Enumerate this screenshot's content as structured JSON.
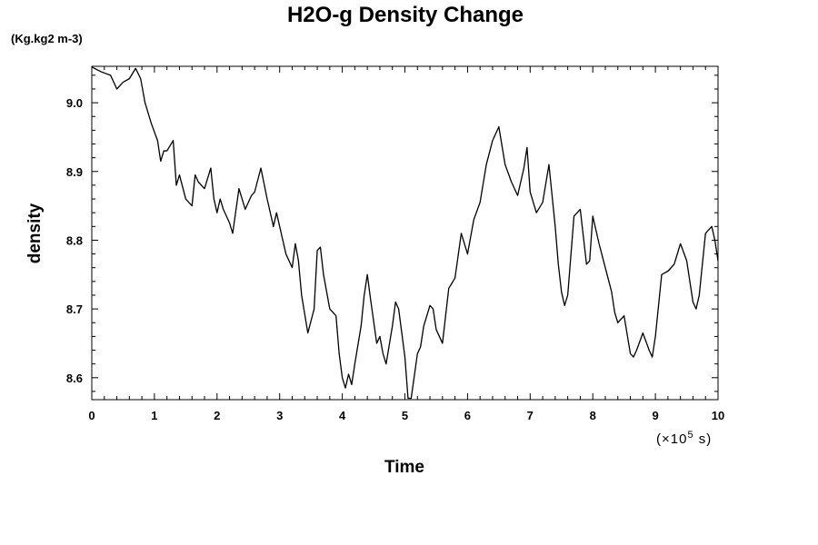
{
  "chart_data": {
    "type": "line",
    "title": "H2O-g Density Change",
    "unit_label": "(Kg.kg2 m-3)",
    "xlabel": "Time",
    "ylabel": "density",
    "x_scale_label": "(×10",
    "x_scale_exp": "5",
    "x_scale_unit": " s)",
    "xlim": [
      0,
      10
    ],
    "ylim": [
      8.568,
      9.053
    ],
    "x_ticks": [
      0,
      1,
      2,
      3,
      4,
      5,
      6,
      7,
      8,
      9,
      10
    ],
    "x_tick_labels": [
      "0",
      "1",
      "2",
      "3",
      "4",
      "5",
      "6",
      "7",
      "8",
      "9",
      "10"
    ],
    "y_ticks": [
      8.6,
      8.7,
      8.8,
      8.9,
      9.0
    ],
    "y_tick_labels": [
      "8.6",
      "8.7",
      "8.8",
      "8.9",
      "9.0"
    ],
    "grid": false,
    "series": [
      {
        "color": "#000000",
        "x": [
          0,
          0.15,
          0.3,
          0.4,
          0.5,
          0.6,
          0.7,
          0.78,
          0.85,
          0.95,
          1.05,
          1.1,
          1.15,
          1.2,
          1.3,
          1.35,
          1.4,
          1.5,
          1.6,
          1.65,
          1.7,
          1.8,
          1.9,
          1.95,
          2.0,
          2.05,
          2.1,
          2.2,
          2.25,
          2.35,
          2.45,
          2.55,
          2.6,
          2.7,
          2.8,
          2.9,
          2.95,
          3.0,
          3.1,
          3.2,
          3.25,
          3.3,
          3.35,
          3.45,
          3.55,
          3.6,
          3.65,
          3.7,
          3.8,
          3.9,
          3.95,
          4.0,
          4.05,
          4.1,
          4.15,
          4.2,
          4.3,
          4.35,
          4.4,
          4.45,
          4.55,
          4.6,
          4.65,
          4.7,
          4.8,
          4.85,
          4.9,
          5.0,
          5.05,
          5.1,
          5.2,
          5.25,
          5.3,
          5.4,
          5.45,
          5.5,
          5.6,
          5.7,
          5.8,
          5.9,
          6.0,
          6.1,
          6.2,
          6.3,
          6.4,
          6.5,
          6.6,
          6.7,
          6.8,
          6.9,
          6.95,
          7.0,
          7.1,
          7.2,
          7.3,
          7.4,
          7.45,
          7.5,
          7.55,
          7.6,
          7.7,
          7.8,
          7.9,
          7.95,
          8.0,
          8.1,
          8.2,
          8.3,
          8.35,
          8.4,
          8.5,
          8.6,
          8.65,
          8.7,
          8.8,
          8.9,
          8.95,
          9.0,
          9.1,
          9.2,
          9.3,
          9.4,
          9.5,
          9.6,
          9.65,
          9.7,
          9.8,
          9.9,
          9.95,
          10.0
        ],
        "y": [
          9.052,
          9.045,
          9.04,
          9.02,
          9.03,
          9.035,
          9.05,
          9.035,
          9.0,
          8.97,
          8.945,
          8.915,
          8.93,
          8.93,
          8.945,
          8.88,
          8.895,
          8.86,
          8.85,
          8.895,
          8.885,
          8.875,
          8.905,
          8.86,
          8.84,
          8.86,
          8.845,
          8.825,
          8.81,
          8.875,
          8.845,
          8.865,
          8.87,
          8.905,
          8.86,
          8.82,
          8.84,
          8.82,
          8.78,
          8.76,
          8.795,
          8.77,
          8.72,
          8.665,
          8.7,
          8.785,
          8.79,
          8.75,
          8.7,
          8.69,
          8.635,
          8.6,
          8.585,
          8.605,
          8.59,
          8.62,
          8.675,
          8.72,
          8.75,
          8.715,
          8.65,
          8.66,
          8.635,
          8.62,
          8.675,
          8.71,
          8.7,
          8.63,
          8.57,
          8.57,
          8.635,
          8.645,
          8.675,
          8.705,
          8.7,
          8.67,
          8.65,
          8.73,
          8.745,
          8.81,
          8.78,
          8.83,
          8.855,
          8.91,
          8.945,
          8.965,
          8.91,
          8.885,
          8.865,
          8.905,
          8.935,
          8.87,
          8.84,
          8.855,
          8.91,
          8.82,
          8.765,
          8.725,
          8.705,
          8.72,
          8.835,
          8.845,
          8.765,
          8.77,
          8.835,
          8.795,
          8.76,
          8.725,
          8.695,
          8.68,
          8.69,
          8.635,
          8.63,
          8.64,
          8.665,
          8.64,
          8.63,
          8.66,
          8.75,
          8.755,
          8.765,
          8.795,
          8.77,
          8.71,
          8.7,
          8.72,
          8.81,
          8.82,
          8.8,
          8.77
        ]
      }
    ]
  }
}
